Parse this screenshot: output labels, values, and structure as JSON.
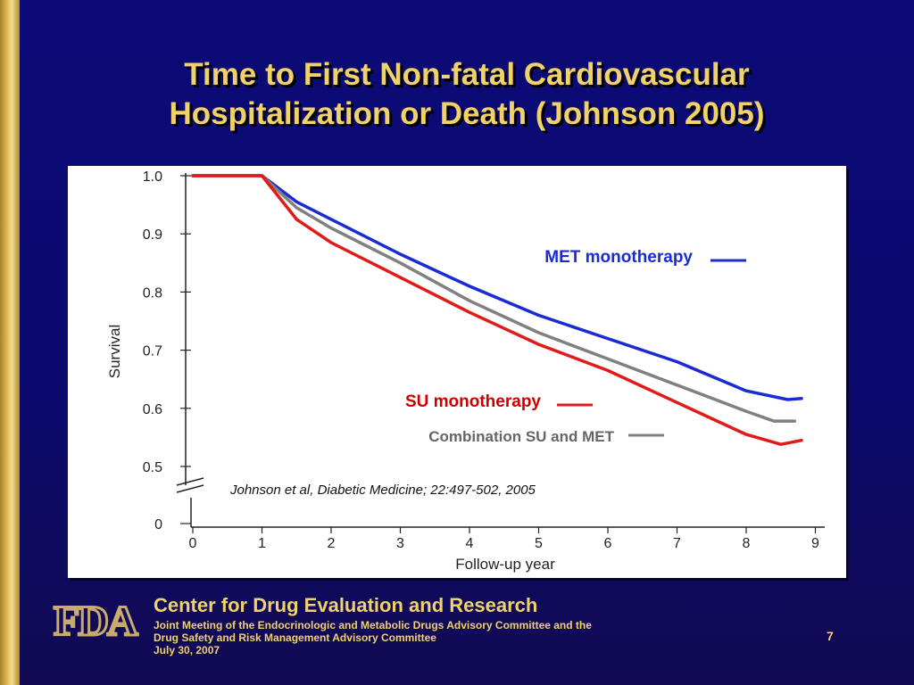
{
  "slide": {
    "title_line1": "Time to First Non-fatal Cardiovascular",
    "title_line2": "Hospitalization or Death (Johnson 2005)",
    "page_number": "7",
    "accent_color": "#f1d26a",
    "background_color": "#0c0b78"
  },
  "footer": {
    "center_name": "Center for Drug Evaluation and Research",
    "meeting_line1": "Joint Meeting of the Endocrinologic and Metabolic Drugs Advisory Committee and the",
    "meeting_line2": "Drug Safety and Risk Management Advisory Committee",
    "date": "July 30, 2007",
    "logo_text": "FDA"
  },
  "chart_data": {
    "type": "line",
    "xlabel": "Follow-up year",
    "ylabel": "Survival",
    "xlim": [
      0,
      9
    ],
    "x_ticks": [
      "0",
      "1",
      "2",
      "3",
      "4",
      "5",
      "6",
      "7",
      "8",
      "9"
    ],
    "y_ticks": [
      "0",
      "0.5",
      "0.6",
      "0.7",
      "0.8",
      "0.9",
      "1.0"
    ],
    "y_axis_break": "between 0 and 0.5",
    "grid": false,
    "citation": "Johnson et al, Diabetic Medicine; 22:497-502, 2005",
    "series": [
      {
        "name": "MET monotherapy",
        "color": "#1a2bd6",
        "x": [
          0,
          1,
          1.5,
          2,
          3,
          4,
          5,
          6,
          7,
          8,
          8.6,
          8.8
        ],
        "y": [
          1.0,
          1.0,
          0.955,
          0.925,
          0.865,
          0.81,
          0.76,
          0.72,
          0.68,
          0.63,
          0.615,
          0.617
        ]
      },
      {
        "name": "Combination SU and MET",
        "color": "#808080",
        "x": [
          0,
          1,
          1.5,
          2,
          3,
          4,
          5,
          6,
          7,
          8,
          8.4,
          8.7
        ],
        "y": [
          1.0,
          1.0,
          0.945,
          0.91,
          0.85,
          0.785,
          0.73,
          0.685,
          0.64,
          0.595,
          0.578,
          0.578
        ]
      },
      {
        "name": "SU monotherapy",
        "color": "#e11a1a",
        "x": [
          0,
          1,
          1.5,
          2,
          3,
          4,
          5,
          6,
          7,
          8,
          8.5,
          8.8
        ],
        "y": [
          1.0,
          1.0,
          0.925,
          0.885,
          0.825,
          0.765,
          0.71,
          0.665,
          0.61,
          0.555,
          0.538,
          0.545
        ]
      }
    ],
    "labels": [
      {
        "series": 0,
        "text": "MET monotherapy"
      },
      {
        "series": 2,
        "text": "SU monotherapy"
      },
      {
        "series": 1,
        "text": "Combination SU and MET"
      }
    ]
  }
}
